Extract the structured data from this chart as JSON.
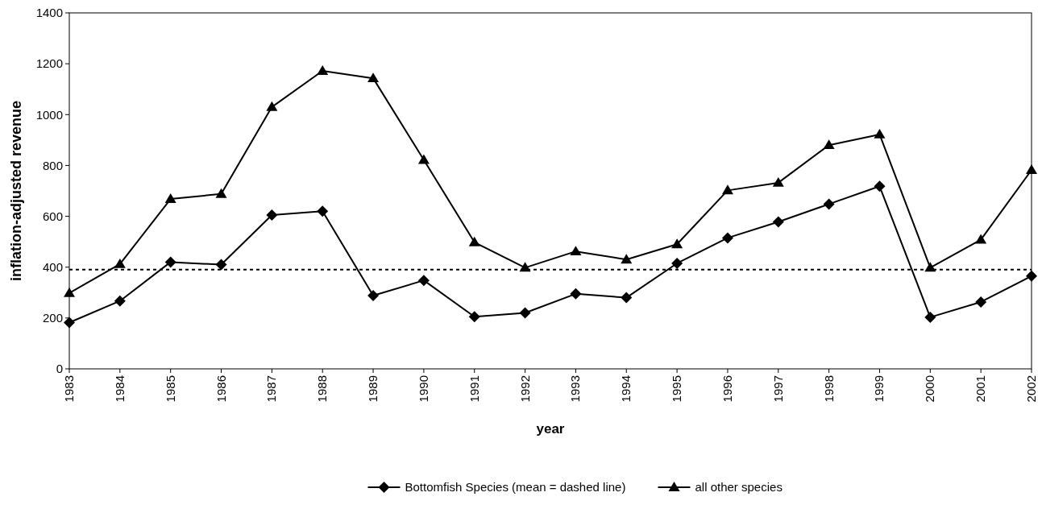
{
  "chart_data": {
    "type": "line",
    "xlabel": "year",
    "ylabel": "inflation-adjusted revenue",
    "categories": [
      "1983",
      "1984",
      "1985",
      "1986",
      "1987",
      "1988",
      "1989",
      "1990",
      "1991",
      "1992",
      "1993",
      "1994",
      "1995",
      "1996",
      "1997",
      "1998",
      "1999",
      "2000",
      "2001",
      "2002"
    ],
    "series": [
      {
        "name": "Bottomfish Species (mean = dashed line)",
        "color": "#000000",
        "marker": "diamond",
        "values": [
          182,
          267,
          420,
          410,
          605,
          620,
          288,
          348,
          205,
          220,
          295,
          280,
          415,
          515,
          578,
          648,
          718,
          203,
          263,
          365
        ]
      },
      {
        "name": "all other species",
        "color": "#000000",
        "marker": "triangle",
        "values": [
          298,
          412,
          668,
          688,
          1030,
          1172,
          1143,
          822,
          498,
          398,
          462,
          430,
          490,
          702,
          732,
          880,
          922,
          398,
          508,
          782
        ]
      }
    ],
    "ylim": [
      0,
      1400
    ],
    "yticks": [
      0,
      200,
      400,
      600,
      800,
      1000,
      1200,
      1400
    ],
    "ref_lines": [
      {
        "axis": "y",
        "value": 390,
        "color": "#000000",
        "line_style": "dashed"
      }
    ],
    "grid": false,
    "legend": "bottom",
    "line_style": "solid"
  }
}
